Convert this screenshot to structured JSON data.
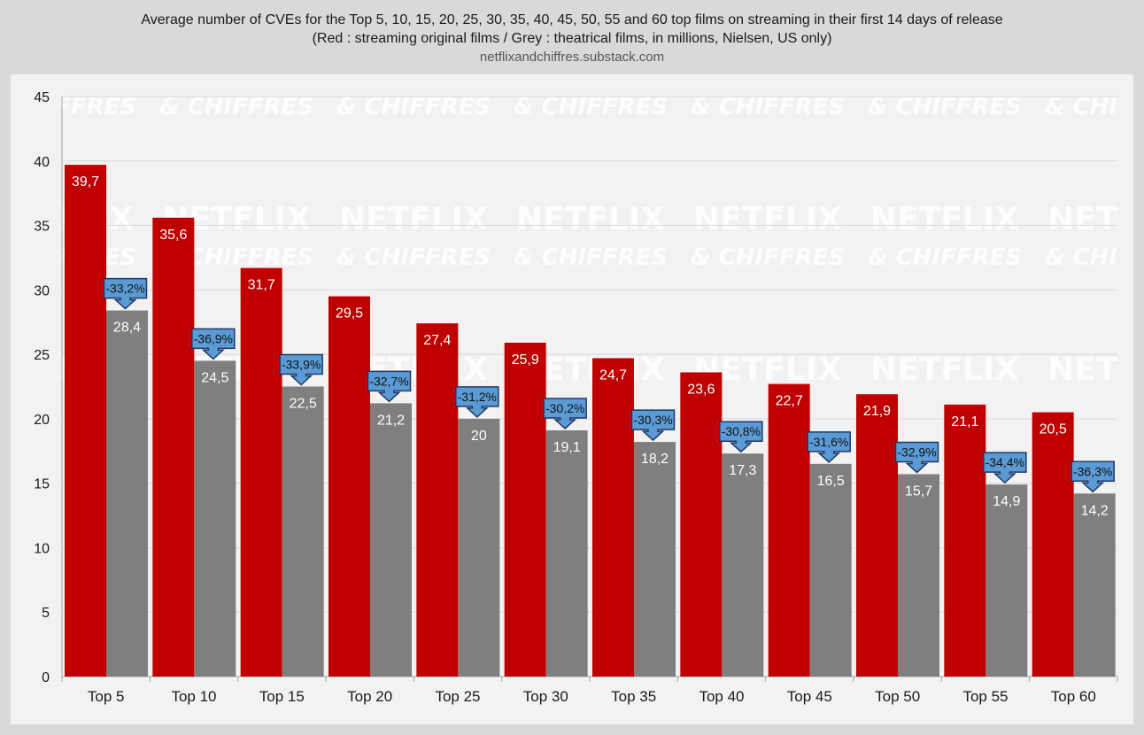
{
  "title": "Average number of CVEs for the Top 5, 10, 15, 20, 25, 30, 35, 40, 45, 50, 55 and 60 top films on streaming in their first 14 days of release",
  "subtitle": "(Red : streaming original films / Grey : theatrical films, in millions, Nielsen, US only)",
  "source": "netflixandchiffres.substack.com",
  "watermark": {
    "line1": "NETFLIX",
    "line2": "& CHIFFRES"
  },
  "colors": {
    "streaming": "#c00000",
    "theatrical": "#7f7f7f",
    "callout_fill": "#5b9bd5",
    "callout_border": "#1f3864",
    "plot_bg": "#f2f2f2",
    "grid": "#d9d9d9"
  },
  "chart_data": {
    "type": "bar",
    "categories": [
      "Top 5",
      "Top 10",
      "Top 15",
      "Top 20",
      "Top 25",
      "Top 30",
      "Top 35",
      "Top 40",
      "Top 45",
      "Top 50",
      "Top 55",
      "Top 60"
    ],
    "series": [
      {
        "values": [
          39.7,
          35.6,
          31.7,
          29.5,
          27.4,
          25.9,
          24.7,
          23.6,
          22.7,
          21.9,
          21.1,
          20.5
        ],
        "labels": [
          "39,7",
          "35,6",
          "31,7",
          "29,5",
          "27,4",
          "25,9",
          "24,7",
          "23,6",
          "22,7",
          "21,9",
          "21,1",
          "20,5"
        ],
        "color": "#c00000"
      },
      {
        "values": [
          28.4,
          24.5,
          22.5,
          21.2,
          20,
          19.1,
          18.2,
          17.3,
          16.5,
          15.7,
          14.9,
          14.2
        ],
        "labels": [
          "28,4",
          "24,5",
          "22,5",
          "21,2",
          "20",
          "19,1",
          "18,2",
          "17,3",
          "16,5",
          "15,7",
          "14,9",
          "14,2"
        ],
        "color": "#7f7f7f"
      }
    ],
    "differences": [
      "-33,2%",
      "-36,9%",
      "-33,9%",
      "-32,7%",
      "-31,2%",
      "-30,2%",
      "-30,3%",
      "-30,8%",
      "-31,6%",
      "-32,9%",
      "-34,4%",
      "-36,3%"
    ],
    "ylim": [
      0,
      45
    ],
    "yticks": [
      "0",
      "5",
      "10",
      "15",
      "20",
      "25",
      "30",
      "35",
      "40",
      "45"
    ],
    "grid": true
  }
}
